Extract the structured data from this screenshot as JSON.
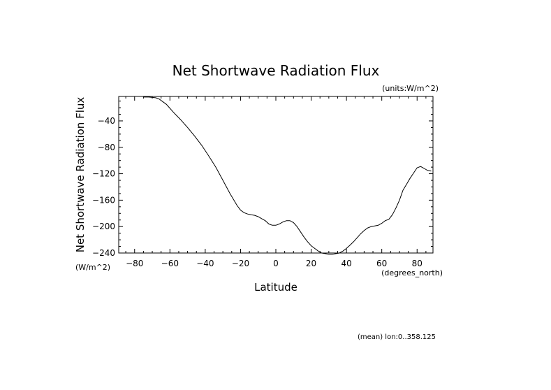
{
  "chart_data": {
    "type": "line",
    "title": "Net Shortwave Radiation Flux",
    "units_note": "(units:W/m^2)",
    "xlabel": "Latitude",
    "xunits": "(degrees_north)",
    "ylabel": "Net Shortwave Radiation Flux",
    "yunits": "(W/m^2)",
    "footnote": "(mean) lon:0..358.125",
    "xlim": [
      -89,
      89
    ],
    "ylim": [
      -240,
      -3
    ],
    "x_ticks": [
      -80,
      -60,
      -40,
      -20,
      0,
      20,
      40,
      60,
      80
    ],
    "y_ticks": [
      -40,
      -80,
      -120,
      -160,
      -200,
      -240
    ],
    "grid": false,
    "series": [
      {
        "color": "#000000",
        "x": [
          -75,
          -72,
          -70,
          -68,
          -66,
          -62,
          -58,
          -54,
          -50,
          -46,
          -42,
          -38,
          -34,
          -30,
          -26,
          -22,
          -20,
          -18,
          -16,
          -14,
          -12,
          -10,
          -8,
          -6,
          -4,
          -2,
          0,
          2,
          4,
          6,
          8,
          10,
          12,
          14,
          16,
          18,
          20,
          22,
          24,
          26,
          28,
          30,
          32,
          34,
          36,
          38,
          40,
          42,
          44,
          46,
          48,
          50,
          52,
          54,
          56,
          58,
          60,
          62,
          64,
          66,
          68,
          70,
          72,
          74,
          76,
          78,
          80,
          82,
          84,
          86,
          88
        ],
        "y": [
          -4,
          -4,
          -4.5,
          -5,
          -7,
          -15,
          -27,
          -38,
          -50,
          -63,
          -77,
          -93,
          -110,
          -130,
          -150,
          -168,
          -175,
          -179,
          -181,
          -182,
          -183,
          -185,
          -188,
          -191,
          -196,
          -198,
          -198,
          -196,
          -193,
          -191,
          -191,
          -194,
          -200,
          -208,
          -216,
          -223,
          -229,
          -233,
          -237,
          -240,
          -241,
          -242,
          -242,
          -241,
          -240,
          -237,
          -233,
          -228,
          -223,
          -217,
          -211,
          -206,
          -202,
          -200,
          -199,
          -198,
          -195,
          -191,
          -189,
          -182,
          -172,
          -160,
          -145,
          -136,
          -127,
          -119,
          -111,
          -109,
          -112,
          -115,
          -116
        ]
      }
    ]
  }
}
